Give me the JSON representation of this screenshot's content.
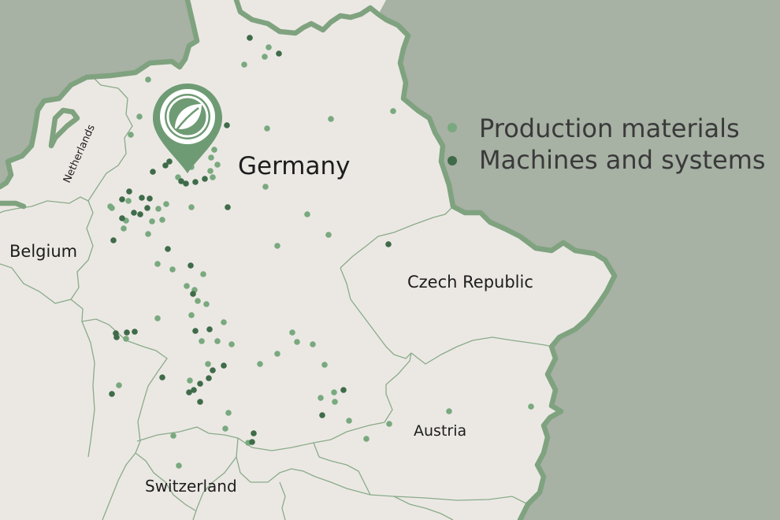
{
  "map": {
    "country_labels": {
      "germany": "Germany",
      "netherlands": "Netherlands",
      "belgium": "Belgium",
      "czech": "Czech Republic",
      "austria": "Austria",
      "switzerland": "Switzerland"
    },
    "legend": {
      "production": "Production materials",
      "machines": "Machines and systems"
    },
    "marker_icon": "leaf-icon",
    "colors": {
      "sea": "#a7b1a4",
      "land": "#ebe8e4",
      "border": "#7fa27f",
      "german_border": "#7fa27f",
      "production": "#79a97e",
      "machines": "#3f6b49",
      "marker": "#6e9b73"
    }
  }
}
